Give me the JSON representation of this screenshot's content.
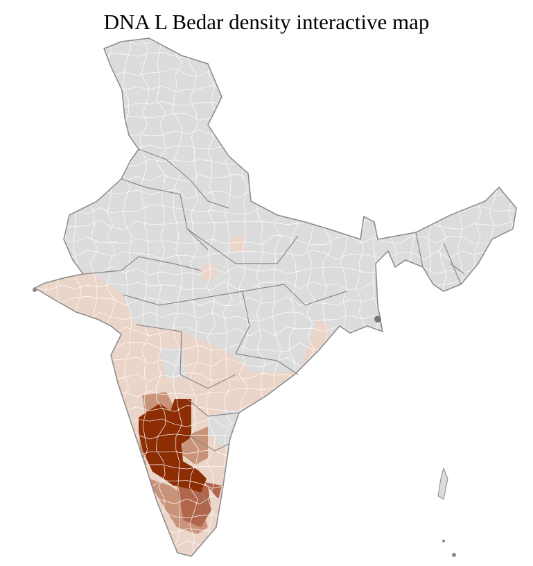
{
  "title": "DNA L Bedar density interactive map",
  "colors": {
    "no_data": "#dcdcdc",
    "low": "#ebd4c8",
    "medium": "#c9937a",
    "high": "#b0664a",
    "highest": "#8c2d04",
    "district_border": "#ffffff",
    "state_border": "#888888"
  }
}
